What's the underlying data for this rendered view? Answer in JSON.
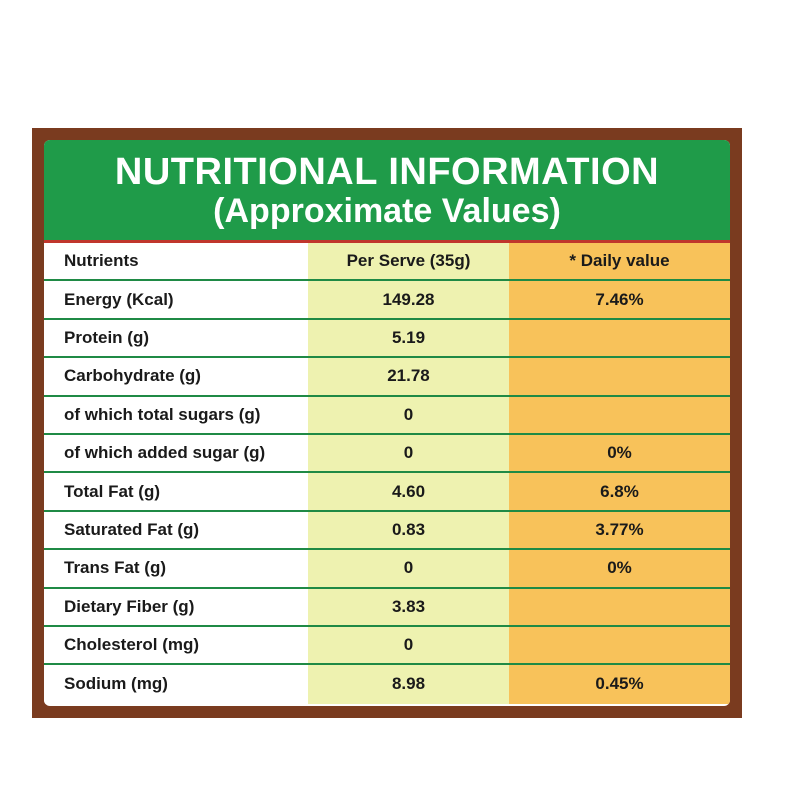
{
  "title": "NUTRITIONAL INFORMATION",
  "subtitle": "(Approximate Values)",
  "columns": [
    "Nutrients",
    "Per Serve (35g)",
    "* Daily value"
  ],
  "rows": [
    {
      "nutrient": "Energy (Kcal)",
      "per_serve": "149.28",
      "daily": "7.46%"
    },
    {
      "nutrient": "Protein (g)",
      "per_serve": "5.19",
      "daily": ""
    },
    {
      "nutrient": "Carbohydrate (g)",
      "per_serve": "21.78",
      "daily": ""
    },
    {
      "nutrient": "of which total sugars (g)",
      "per_serve": "0",
      "daily": ""
    },
    {
      "nutrient": "of which added sugar (g)",
      "per_serve": "0",
      "daily": "0%"
    },
    {
      "nutrient": "Total Fat (g)",
      "per_serve": "4.60",
      "daily": "6.8%"
    },
    {
      "nutrient": "Saturated Fat (g)",
      "per_serve": "0.83",
      "daily": "3.77%"
    },
    {
      "nutrient": "Trans Fat (g)",
      "per_serve": "0",
      "daily": "0%"
    },
    {
      "nutrient": "Dietary Fiber (g)",
      "per_serve": "3.83",
      "daily": ""
    },
    {
      "nutrient": "Cholesterol (mg)",
      "per_serve": "0",
      "daily": ""
    },
    {
      "nutrient": "Sodium (mg)",
      "per_serve": "8.98",
      "daily": "0.45%"
    }
  ],
  "colors": {
    "border": "#7a3b1f",
    "header": "#1f9b49",
    "header_rule": "#c0362c",
    "per_serve_column": "#eef2b0",
    "daily_column": "#f8c25a",
    "row_divider": "#1f8a45"
  }
}
